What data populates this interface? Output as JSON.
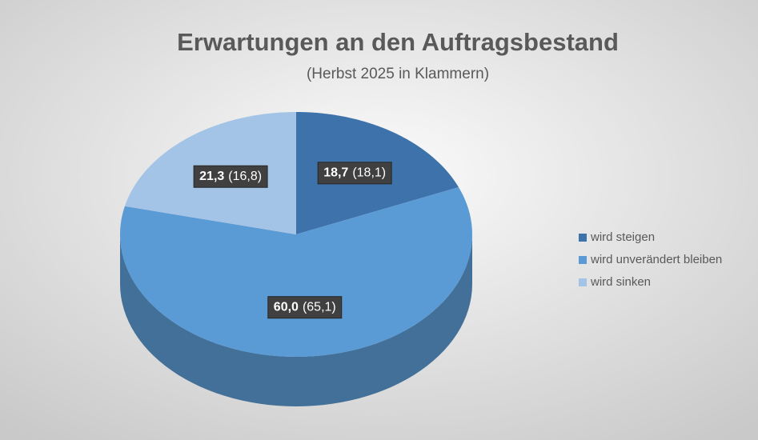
{
  "chart_data": {
    "type": "pie3d",
    "title": "Erwartungen an den Auftragsbestand",
    "subtitle": "(Herbst 2025 in Klammern)",
    "categories": [
      "wird steigen",
      "wird unverändert bleiben",
      "wird sinken"
    ],
    "values": [
      18.7,
      60.0,
      21.3
    ],
    "value_labels": [
      "18,7",
      "60,0",
      "21,3"
    ],
    "previous_values": [
      18.1,
      65.1,
      16.8
    ],
    "previous_value_labels": [
      "(18,1)",
      "(65,1)",
      "(16,8)"
    ],
    "colors": [
      "#3d72ab",
      "#5b9bd5",
      "#a3c4e6"
    ],
    "legend": "right"
  }
}
